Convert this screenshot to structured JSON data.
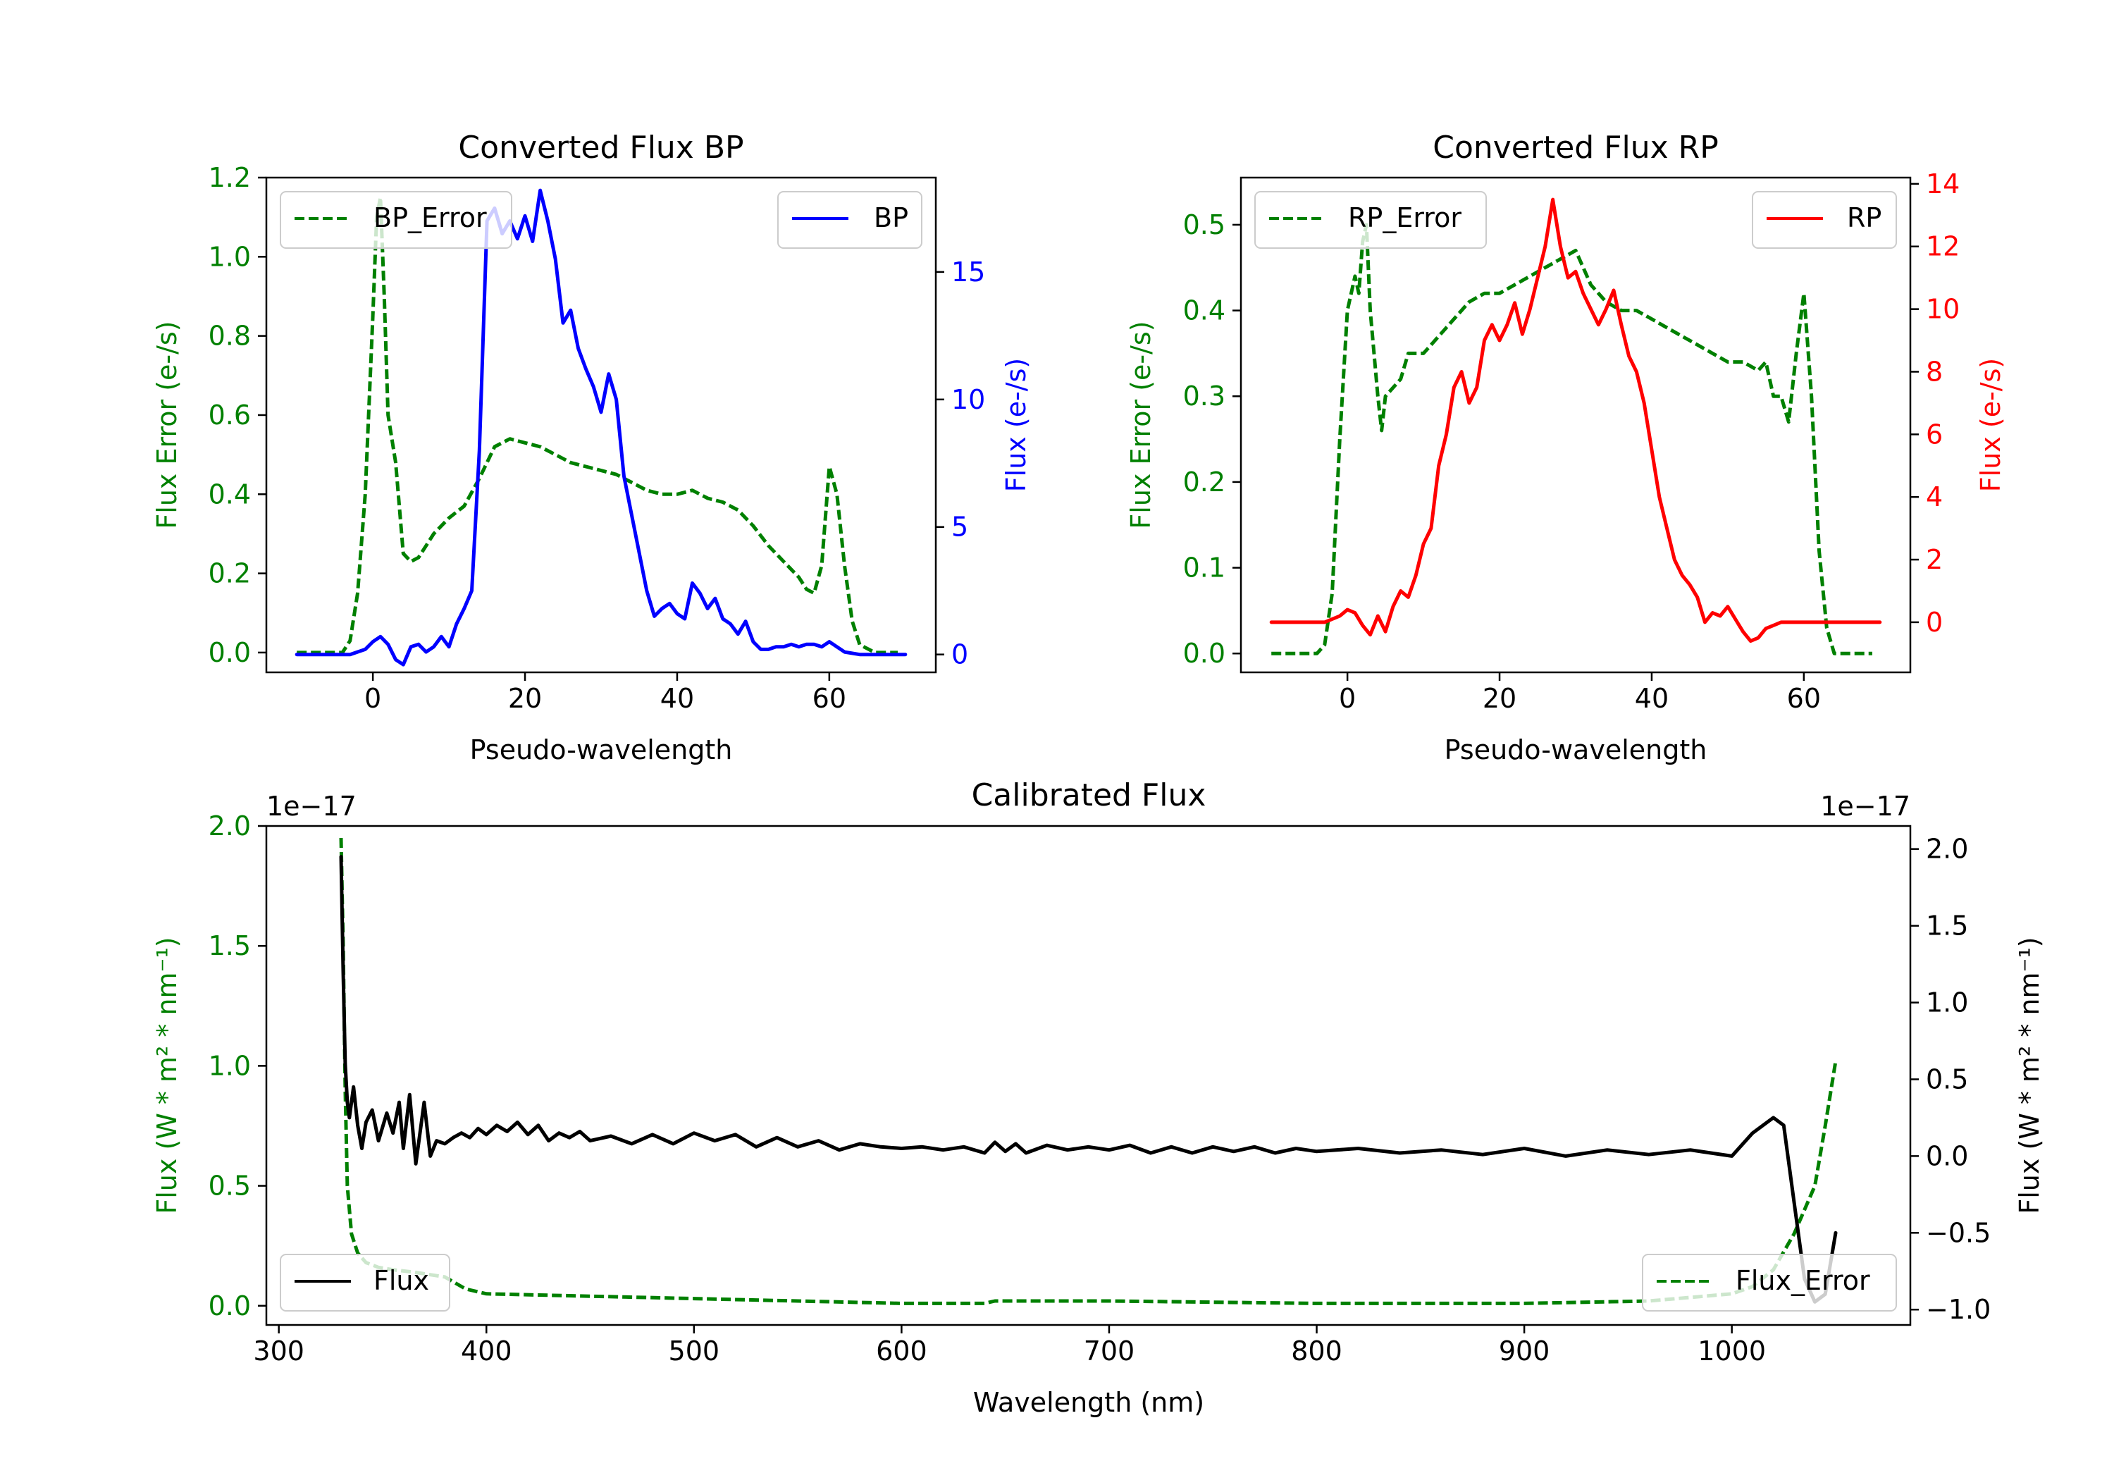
{
  "colors": {
    "green": "#008000",
    "blue": "#0000ff",
    "red": "#ff0000",
    "black": "#000000"
  },
  "chart_data": [
    {
      "id": "bp",
      "type": "line",
      "title": "Converted Flux BP",
      "xlabel": "Pseudo-wavelength",
      "ylabel_left": "Flux Error (e-/s)",
      "ylabel_right": "Flux (e-/s)",
      "xlim": [
        -14,
        74
      ],
      "ylim_left": [
        -0.05,
        1.2
      ],
      "ylim_right": [
        -0.7,
        18.7
      ],
      "xticks": [
        0,
        20,
        40,
        60
      ],
      "xtick_labels": [
        "0",
        "20",
        "40",
        "60"
      ],
      "yticks_left": [
        0.0,
        0.2,
        0.4,
        0.6,
        0.8,
        1.0,
        1.2
      ],
      "ytick_labels_left": [
        "0.0",
        "0.2",
        "0.4",
        "0.6",
        "0.8",
        "1.0",
        "1.2"
      ],
      "yticks_right": [
        0,
        5,
        10,
        15
      ],
      "ytick_labels_right": [
        "0",
        "5",
        "10",
        "15"
      ],
      "legend_left": "BP_Error",
      "legend_right": "BP",
      "series": [
        {
          "name": "BP_Error",
          "axis": "left",
          "style": "dashed",
          "color": "green",
          "x": [
            -10,
            -4,
            -3,
            -2,
            -1,
            0,
            0.5,
            1,
            1.5,
            2,
            3,
            4,
            5,
            6,
            7,
            8,
            10,
            12,
            14,
            16,
            18,
            20,
            22,
            24,
            26,
            28,
            30,
            32,
            34,
            36,
            38,
            40,
            42,
            44,
            46,
            48,
            50,
            52,
            54,
            56,
            57,
            58,
            59,
            60,
            61,
            62,
            63,
            64,
            66,
            69
          ],
          "y": [
            0.0,
            0.0,
            0.03,
            0.15,
            0.4,
            0.85,
            1.1,
            1.15,
            0.9,
            0.6,
            0.48,
            0.25,
            0.23,
            0.24,
            0.27,
            0.3,
            0.34,
            0.37,
            0.44,
            0.52,
            0.54,
            0.53,
            0.52,
            0.5,
            0.48,
            0.47,
            0.46,
            0.45,
            0.43,
            0.41,
            0.4,
            0.4,
            0.41,
            0.39,
            0.38,
            0.36,
            0.32,
            0.27,
            0.23,
            0.19,
            0.16,
            0.15,
            0.22,
            0.47,
            0.4,
            0.22,
            0.08,
            0.02,
            0.0,
            0.0
          ]
        },
        {
          "name": "BP",
          "axis": "right",
          "style": "solid",
          "color": "blue",
          "x": [
            -10,
            -3,
            -1,
            0,
            1,
            2,
            3,
            4,
            5,
            6,
            7,
            8,
            9,
            10,
            11,
            12,
            13,
            14,
            15,
            16,
            17,
            18,
            19,
            20,
            21,
            22,
            23,
            24,
            25,
            26,
            27,
            28,
            29,
            30,
            31,
            32,
            33,
            34,
            35,
            36,
            37,
            38,
            39,
            40,
            41,
            42,
            43,
            44,
            45,
            46,
            47,
            48,
            49,
            50,
            51,
            52,
            53,
            54,
            55,
            56,
            57,
            58,
            59,
            60,
            61,
            62,
            64,
            70
          ],
          "y": [
            0,
            0,
            0.2,
            0.5,
            0.7,
            0.4,
            -0.2,
            -0.4,
            0.3,
            0.4,
            0.1,
            0.3,
            0.7,
            0.3,
            1.2,
            1.8,
            2.5,
            8,
            17,
            17.5,
            16.5,
            17,
            16.3,
            17.2,
            16.2,
            18.2,
            17,
            15.5,
            13,
            13.5,
            12,
            11.2,
            10.5,
            9.5,
            11,
            10,
            7,
            5.5,
            4,
            2.5,
            1.5,
            1.8,
            2,
            1.6,
            1.4,
            2.8,
            2.4,
            1.8,
            2.2,
            1.4,
            1.2,
            0.8,
            1.3,
            0.5,
            0.2,
            0.2,
            0.3,
            0.3,
            0.4,
            0.3,
            0.4,
            0.4,
            0.3,
            0.5,
            0.3,
            0.1,
            0,
            0
          ]
        }
      ]
    },
    {
      "id": "rp",
      "type": "line",
      "title": "Converted Flux RP",
      "xlabel": "Pseudo-wavelength",
      "ylabel_left": "Flux Error (e-/s)",
      "ylabel_right": "Flux (e-/s)",
      "xlim": [
        -14,
        74
      ],
      "ylim_left": [
        -0.022,
        0.555
      ],
      "ylim_right": [
        -1.6,
        14.2
      ],
      "xticks": [
        0,
        20,
        40,
        60
      ],
      "xtick_labels": [
        "0",
        "20",
        "40",
        "60"
      ],
      "yticks_left": [
        0.0,
        0.1,
        0.2,
        0.3,
        0.4,
        0.5
      ],
      "ytick_labels_left": [
        "0.0",
        "0.1",
        "0.2",
        "0.3",
        "0.4",
        "0.5"
      ],
      "yticks_right": [
        0,
        2,
        4,
        6,
        8,
        10,
        12,
        14
      ],
      "ytick_labels_right": [
        "0",
        "2",
        "4",
        "6",
        "8",
        "10",
        "12",
        "14"
      ],
      "legend_left": "RP_Error",
      "legend_right": "RP",
      "series": [
        {
          "name": "RP_Error",
          "axis": "left",
          "style": "dashed",
          "color": "green",
          "x": [
            -10,
            -4,
            -3,
            -2,
            -1,
            0,
            1,
            1.5,
            2,
            2.5,
            3,
            4,
            4.5,
            5,
            6,
            7,
            8,
            10,
            12,
            14,
            16,
            18,
            20,
            22,
            24,
            26,
            28,
            30,
            32,
            34,
            36,
            38,
            40,
            42,
            44,
            46,
            48,
            50,
            52,
            54,
            55,
            56,
            57,
            58,
            59,
            60,
            61,
            62,
            63,
            64,
            66,
            69
          ],
          "y": [
            0.0,
            0.0,
            0.01,
            0.07,
            0.25,
            0.4,
            0.44,
            0.42,
            0.48,
            0.5,
            0.4,
            0.3,
            0.26,
            0.3,
            0.31,
            0.32,
            0.35,
            0.35,
            0.37,
            0.39,
            0.41,
            0.42,
            0.42,
            0.43,
            0.44,
            0.45,
            0.46,
            0.47,
            0.43,
            0.41,
            0.4,
            0.4,
            0.39,
            0.38,
            0.37,
            0.36,
            0.35,
            0.34,
            0.34,
            0.33,
            0.34,
            0.3,
            0.3,
            0.27,
            0.35,
            0.42,
            0.3,
            0.12,
            0.03,
            0.0,
            0.0,
            0.0
          ]
        },
        {
          "name": "RP",
          "axis": "right",
          "style": "solid",
          "color": "red",
          "x": [
            -10,
            -3,
            -1,
            0,
            1,
            2,
            3,
            4,
            5,
            6,
            7,
            8,
            9,
            10,
            11,
            12,
            13,
            14,
            15,
            16,
            17,
            18,
            19,
            20,
            21,
            22,
            23,
            24,
            25,
            26,
            27,
            28,
            29,
            30,
            31,
            32,
            33,
            34,
            35,
            36,
            37,
            38,
            39,
            40,
            41,
            42,
            43,
            44,
            45,
            46,
            47,
            48,
            49,
            50,
            51,
            52,
            53,
            54,
            55,
            56,
            57,
            58,
            59,
            60,
            61,
            62,
            63,
            64,
            70
          ],
          "y": [
            0,
            0,
            0.2,
            0.4,
            0.3,
            -0.1,
            -0.4,
            0.2,
            -0.3,
            0.5,
            1,
            0.8,
            1.5,
            2.5,
            3,
            5,
            6,
            7.5,
            8,
            7,
            7.5,
            9,
            9.5,
            9,
            9.5,
            10.2,
            9.2,
            10,
            11,
            12,
            13.5,
            12,
            11,
            11.2,
            10.5,
            10,
            9.5,
            10,
            10.6,
            9.5,
            8.5,
            8,
            7,
            5.5,
            4,
            3,
            2,
            1.5,
            1.2,
            0.8,
            0,
            0.3,
            0.2,
            0.5,
            0.1,
            -0.3,
            -0.6,
            -0.5,
            -0.2,
            -0.1,
            0,
            0,
            0,
            0,
            0,
            0,
            0,
            0,
            0
          ]
        }
      ]
    },
    {
      "id": "cal",
      "type": "line",
      "title": "Calibrated Flux",
      "xlabel": "Wavelength (nm)",
      "ylabel_left": "Flux (W * m² * nm⁻¹)",
      "ylabel_right": "Flux (W * m² * nm⁻¹)",
      "offset_left": "1e−17",
      "offset_right": "1e−17",
      "xlim": [
        294,
        1086
      ],
      "ylim_left": [
        -0.08,
        2.0
      ],
      "ylim_right": [
        -1.1,
        2.15
      ],
      "xticks": [
        300,
        400,
        500,
        600,
        700,
        800,
        900,
        1000
      ],
      "xtick_labels": [
        "300",
        "400",
        "500",
        "600",
        "700",
        "800",
        "900",
        "1000"
      ],
      "yticks_left": [
        0.0,
        0.5,
        1.0,
        1.5,
        2.0
      ],
      "ytick_labels_left": [
        "0.0",
        "0.5",
        "1.0",
        "1.5",
        "2.0"
      ],
      "yticks_right": [
        -1.0,
        -0.5,
        0.0,
        0.5,
        1.0,
        1.5,
        2.0
      ],
      "ytick_labels_right": [
        "−1.0",
        "−0.5",
        "0.0",
        "0.5",
        "1.0",
        "1.5",
        "2.0"
      ],
      "legend_left": "Flux",
      "legend_right": "Flux_Error",
      "series": [
        {
          "name": "Flux_Error",
          "axis": "left",
          "style": "dashed",
          "color": "green",
          "x": [
            330,
            331,
            332,
            333,
            335,
            338,
            342,
            348,
            355,
            365,
            380,
            390,
            400,
            450,
            500,
            550,
            600,
            640,
            645,
            700,
            800,
            900,
            960,
            1000,
            1010,
            1020,
            1030,
            1040,
            1045,
            1050
          ],
          "y": [
            1.95,
            1.5,
            0.9,
            0.5,
            0.3,
            0.22,
            0.18,
            0.16,
            0.15,
            0.14,
            0.12,
            0.07,
            0.05,
            0.04,
            0.03,
            0.02,
            0.01,
            0.01,
            0.02,
            0.02,
            0.01,
            0.01,
            0.02,
            0.05,
            0.08,
            0.15,
            0.3,
            0.5,
            0.75,
            1.02
          ]
        },
        {
          "name": "Flux",
          "axis": "right",
          "style": "solid",
          "color": "black",
          "x": [
            330,
            331,
            332,
            333,
            334,
            336,
            338,
            340,
            342,
            345,
            348,
            352,
            355,
            358,
            360,
            363,
            366,
            370,
            373,
            376,
            380,
            384,
            388,
            392,
            396,
            400,
            405,
            410,
            415,
            420,
            425,
            430,
            435,
            440,
            445,
            450,
            460,
            470,
            480,
            490,
            500,
            510,
            520,
            530,
            540,
            550,
            560,
            570,
            580,
            590,
            600,
            610,
            620,
            630,
            640,
            645,
            650,
            655,
            660,
            670,
            680,
            690,
            700,
            710,
            720,
            730,
            740,
            750,
            760,
            770,
            780,
            790,
            800,
            820,
            840,
            860,
            880,
            900,
            920,
            940,
            960,
            980,
            1000,
            1010,
            1020,
            1025,
            1030,
            1035,
            1040,
            1045,
            1050
          ],
          "y": [
            1.95,
            1.2,
            0.6,
            0.35,
            0.25,
            0.45,
            0.2,
            0.05,
            0.22,
            0.3,
            0.1,
            0.28,
            0.15,
            0.35,
            0.05,
            0.4,
            -0.05,
            0.35,
            0.0,
            0.1,
            0.08,
            0.12,
            0.15,
            0.12,
            0.18,
            0.14,
            0.2,
            0.16,
            0.22,
            0.14,
            0.2,
            0.1,
            0.15,
            0.12,
            0.16,
            0.1,
            0.13,
            0.08,
            0.14,
            0.08,
            0.15,
            0.1,
            0.14,
            0.06,
            0.12,
            0.06,
            0.1,
            0.04,
            0.08,
            0.06,
            0.05,
            0.06,
            0.04,
            0.06,
            0.02,
            0.09,
            0.03,
            0.08,
            0.02,
            0.07,
            0.04,
            0.06,
            0.04,
            0.07,
            0.02,
            0.06,
            0.02,
            0.06,
            0.03,
            0.06,
            0.02,
            0.05,
            0.03,
            0.05,
            0.02,
            0.04,
            0.01,
            0.05,
            0.0,
            0.04,
            0.01,
            0.04,
            0.0,
            0.15,
            0.25,
            0.2,
            -0.3,
            -0.8,
            -0.95,
            -0.9,
            -0.5
          ]
        }
      ]
    }
  ]
}
